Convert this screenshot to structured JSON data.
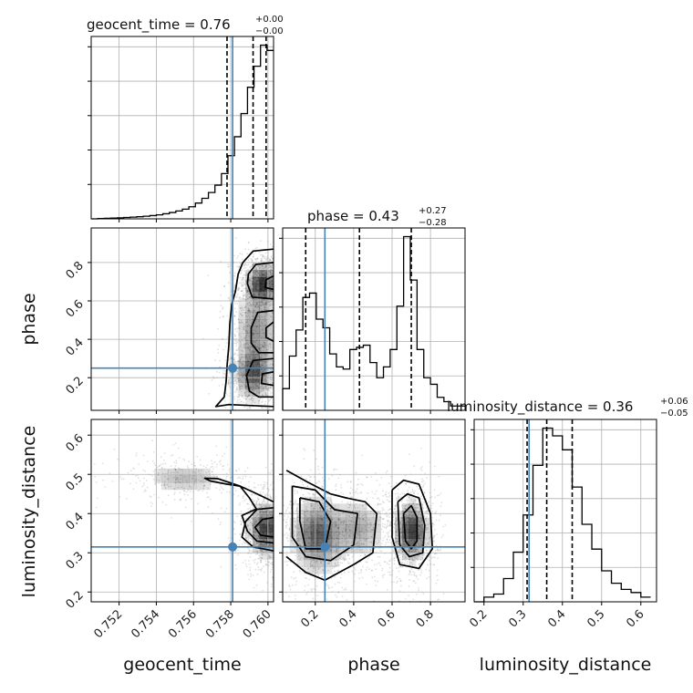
{
  "chart_data": {
    "type": "corner",
    "parameters": [
      "geocent_time",
      "phase",
      "luminosity_distance"
    ],
    "labels": {
      "geocent_time": "geocent_time",
      "phase": "phase",
      "luminosity_distance": "luminosity_distance"
    },
    "titles": {
      "geocent_time": {
        "prefix": "geocent_time = ",
        "median": "0.76",
        "plus": "+0.00",
        "minus": "−0.00"
      },
      "phase": {
        "prefix": "phase = ",
        "median": "0.43",
        "plus": "+0.27",
        "minus": "−0.28"
      },
      "luminosity_distance": {
        "prefix": "luminosity_distance = ",
        "median": "0.36",
        "plus": "+0.06",
        "minus": "−0.05"
      }
    },
    "ranges": {
      "geocent_time": [
        0.7505,
        0.7603
      ],
      "phase": [
        0.03,
        0.98
      ],
      "luminosity_distance": [
        0.175,
        0.64
      ]
    },
    "ticks": {
      "geocent_time": [
        "0.752",
        "0.754",
        "0.756",
        "0.758",
        "0.760"
      ],
      "phase": [
        "0.2",
        "0.4",
        "0.6",
        "0.8"
      ],
      "luminosity_distance": [
        "0.2",
        "0.3",
        "0.4",
        "0.5",
        "0.6"
      ]
    },
    "truths": {
      "geocent_time": 0.7581,
      "phase": 0.25,
      "luminosity_distance": 0.315
    },
    "quantiles": {
      "geocent_time": [
        0.7578,
        0.7592,
        0.7599
      ],
      "phase": [
        0.15,
        0.43,
        0.7
      ],
      "luminosity_distance": [
        0.31,
        0.36,
        0.425
      ]
    },
    "histograms": {
      "geocent_time": {
        "edges": [
          0.7505,
          0.75085,
          0.7512,
          0.75155,
          0.7519,
          0.75225,
          0.7526,
          0.75295,
          0.7533,
          0.75365,
          0.754,
          0.75435,
          0.7547,
          0.75505,
          0.7554,
          0.75575,
          0.7561,
          0.75645,
          0.7568,
          0.75715,
          0.7575,
          0.75785,
          0.7582,
          0.75855,
          0.7589,
          0.75925,
          0.7596,
          0.75995,
          0.7603
        ],
        "counts": [
          0,
          0.3,
          0.5,
          0.7,
          1.0,
          1.3,
          1.6,
          2.0,
          2.5,
          3.1,
          3.8,
          4.8,
          6.0,
          7.5,
          9.2,
          11.5,
          15.0,
          19.5,
          25.0,
          32,
          43,
          60,
          78,
          100,
          125,
          145,
          165,
          160
        ]
      },
      "phase": {
        "edges": [
          0.03,
          0.065,
          0.1,
          0.135,
          0.17,
          0.205,
          0.24,
          0.275,
          0.31,
          0.345,
          0.38,
          0.415,
          0.45,
          0.485,
          0.52,
          0.555,
          0.59,
          0.625,
          0.66,
          0.695,
          0.73,
          0.765,
          0.8,
          0.835,
          0.87,
          0.905,
          0.94,
          0.98
        ],
        "counts": [
          10,
          25,
          37,
          52,
          54,
          42,
          38,
          26,
          20,
          19,
          28,
          29,
          30,
          22,
          15,
          20,
          28,
          48,
          80,
          60,
          28,
          15,
          12,
          6,
          4,
          2,
          2
        ]
      },
      "luminosity_distance": {
        "edges": [
          0.175,
          0.2,
          0.225,
          0.25,
          0.275,
          0.3,
          0.325,
          0.35,
          0.375,
          0.4,
          0.425,
          0.45,
          0.475,
          0.5,
          0.525,
          0.55,
          0.575,
          0.6,
          0.625
        ],
        "counts": [
          0,
          3,
          5,
          15,
          32,
          56,
          88,
          112,
          107,
          98,
          74,
          50,
          34,
          20,
          12,
          8,
          6,
          3
        ]
      }
    },
    "pairs": [
      {
        "x": "geocent_time",
        "y": "phase",
        "density_blobs": [
          {
            "cx": 0.7597,
            "cy": 0.69,
            "sx": 0.00045,
            "sy": 0.055,
            "w": 1.0
          },
          {
            "cx": 0.7592,
            "cy": 0.22,
            "sx": 0.0005,
            "sy": 0.07,
            "w": 0.85
          },
          {
            "cx": 0.7594,
            "cy": 0.45,
            "sx": 0.0006,
            "sy": 0.12,
            "w": 0.55
          }
        ],
        "contours": [
          [
            [
              0.7603,
              0.87
            ],
            [
              0.7592,
              0.86
            ],
            [
              0.75865,
              0.8
            ],
            [
              0.7584,
              0.74
            ],
            [
              0.75825,
              0.65
            ],
            [
              0.75805,
              0.58
            ],
            [
              0.75795,
              0.48
            ],
            [
              0.7579,
              0.37
            ],
            [
              0.7578,
              0.26
            ],
            [
              0.75775,
              0.18
            ],
            [
              0.75765,
              0.1
            ],
            [
              0.7572,
              0.05
            ],
            [
              0.7579,
              0.06
            ],
            [
              0.7603,
              0.05
            ]
          ],
          [
            [
              0.7603,
              0.8
            ],
            [
              0.75935,
              0.79
            ],
            [
              0.75895,
              0.74
            ],
            [
              0.7589,
              0.69
            ],
            [
              0.75915,
              0.62
            ],
            [
              0.7603,
              0.61
            ]
          ],
          [
            [
              0.7603,
              0.55
            ],
            [
              0.75945,
              0.54
            ],
            [
              0.7591,
              0.46
            ],
            [
              0.7591,
              0.38
            ],
            [
              0.7595,
              0.33
            ],
            [
              0.7603,
              0.33
            ]
          ],
          [
            [
              0.7603,
              0.3
            ],
            [
              0.7592,
              0.29
            ],
            [
              0.75885,
              0.21
            ],
            [
              0.759,
              0.13
            ],
            [
              0.7595,
              0.1
            ],
            [
              0.7603,
              0.1
            ]
          ],
          [
            [
              0.7603,
              0.73
            ],
            [
              0.7599,
              0.71
            ],
            [
              0.75985,
              0.67
            ],
            [
              0.7603,
              0.66
            ]
          ],
          [
            [
              0.7603,
              0.23
            ],
            [
              0.7597,
              0.22
            ],
            [
              0.75965,
              0.17
            ],
            [
              0.7603,
              0.16
            ]
          ],
          [
            [
              0.7603,
              0.49
            ],
            [
              0.7599,
              0.46
            ],
            [
              0.7599,
              0.41
            ],
            [
              0.7603,
              0.39
            ]
          ]
        ]
      },
      {
        "x": "geocent_time",
        "y": "luminosity_distance",
        "density_blobs": [
          {
            "cx": 0.7599,
            "cy": 0.36,
            "sx": 0.0005,
            "sy": 0.035,
            "w": 1.0
          },
          {
            "cx": 0.7555,
            "cy": 0.49,
            "sx": 0.0012,
            "sy": 0.02,
            "w": 0.35
          }
        ],
        "contours": [
          [
            [
              0.7603,
              0.43
            ],
            [
              0.7592,
              0.455
            ],
            [
              0.7585,
              0.47
            ],
            [
              0.7578,
              0.475
            ],
            [
              0.7569,
              0.483
            ],
            [
              0.7566,
              0.49
            ],
            [
              0.7573,
              0.489
            ],
            [
              0.7585,
              0.47
            ],
            [
              0.759,
              0.44
            ],
            [
              0.7594,
              0.41
            ],
            [
              0.7588,
              0.38
            ],
            [
              0.7586,
              0.34
            ],
            [
              0.7592,
              0.315
            ],
            [
              0.7603,
              0.305
            ]
          ],
          [
            [
              0.7603,
              0.415
            ],
            [
              0.7593,
              0.41
            ],
            [
              0.7586,
              0.395
            ],
            [
              0.7589,
              0.355
            ],
            [
              0.7594,
              0.33
            ],
            [
              0.7603,
              0.325
            ]
          ],
          [
            [
              0.7603,
              0.39
            ],
            [
              0.7597,
              0.385
            ],
            [
              0.7593,
              0.365
            ],
            [
              0.7596,
              0.345
            ],
            [
              0.7603,
              0.34
            ]
          ]
        ]
      },
      {
        "x": "phase",
        "y": "luminosity_distance",
        "density_blobs": [
          {
            "cx": 0.21,
            "cy": 0.345,
            "sx": 0.07,
            "sy": 0.05,
            "w": 0.85
          },
          {
            "cx": 0.7,
            "cy": 0.355,
            "sx": 0.045,
            "sy": 0.04,
            "w": 1.0
          },
          {
            "cx": 0.42,
            "cy": 0.36,
            "sx": 0.08,
            "sy": 0.04,
            "w": 0.45
          }
        ],
        "contours": [
          [
            [
              0.05,
              0.51
            ],
            [
              0.16,
              0.48
            ],
            [
              0.28,
              0.45
            ],
            [
              0.36,
              0.44
            ],
            [
              0.46,
              0.43
            ],
            [
              0.52,
              0.4
            ],
            [
              0.5,
              0.3
            ],
            [
              0.4,
              0.27
            ],
            [
              0.25,
              0.23
            ],
            [
              0.15,
              0.25
            ],
            [
              0.05,
              0.29
            ]
          ],
          [
            [
              0.08,
              0.47
            ],
            [
              0.2,
              0.46
            ],
            [
              0.3,
              0.41
            ],
            [
              0.42,
              0.4
            ],
            [
              0.4,
              0.32
            ],
            [
              0.28,
              0.28
            ],
            [
              0.15,
              0.29
            ],
            [
              0.08,
              0.34
            ],
            [
              0.08,
              0.47
            ]
          ],
          [
            [
              0.12,
              0.44
            ],
            [
              0.22,
              0.43
            ],
            [
              0.28,
              0.38
            ],
            [
              0.25,
              0.31
            ],
            [
              0.15,
              0.31
            ],
            [
              0.12,
              0.38
            ],
            [
              0.12,
              0.44
            ]
          ],
          [
            [
              0.6,
              0.46
            ],
            [
              0.66,
              0.485
            ],
            [
              0.74,
              0.475
            ],
            [
              0.8,
              0.4
            ],
            [
              0.81,
              0.31
            ],
            [
              0.74,
              0.26
            ],
            [
              0.64,
              0.27
            ],
            [
              0.6,
              0.34
            ],
            [
              0.6,
              0.46
            ]
          ],
          [
            [
              0.63,
              0.43
            ],
            [
              0.68,
              0.45
            ],
            [
              0.74,
              0.44
            ],
            [
              0.77,
              0.37
            ],
            [
              0.76,
              0.3
            ],
            [
              0.69,
              0.29
            ],
            [
              0.64,
              0.32
            ],
            [
              0.63,
              0.43
            ]
          ],
          [
            [
              0.66,
              0.4
            ],
            [
              0.7,
              0.42
            ],
            [
              0.73,
              0.39
            ],
            [
              0.73,
              0.33
            ],
            [
              0.7,
              0.31
            ],
            [
              0.67,
              0.33
            ],
            [
              0.66,
              0.4
            ]
          ]
        ]
      }
    ]
  }
}
